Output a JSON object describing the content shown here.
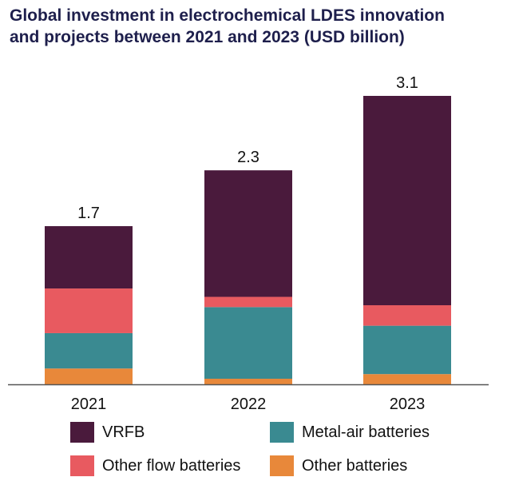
{
  "chart_data": {
    "type": "bar",
    "stacked": true,
    "title_lines": [
      "Global investment in electrochemical LDES innovation",
      "and projects between 2021 and 2023 (USD billion)"
    ],
    "categories": [
      "2021",
      "2022",
      "2023"
    ],
    "totals": [
      "1.7",
      "2.3",
      "3.1"
    ],
    "series": [
      {
        "name": "Other batteries",
        "color": "#e8883a",
        "values": [
          0.17,
          0.06,
          0.11
        ]
      },
      {
        "name": "Metal-air batteries",
        "color": "#3a8a91",
        "values": [
          0.38,
          0.77,
          0.52
        ]
      },
      {
        "name": "Other flow batteries",
        "color": "#e85a60",
        "values": [
          0.48,
          0.11,
          0.22
        ]
      },
      {
        "name": "VRFB",
        "color": "#4a1a3c",
        "values": [
          0.67,
          1.36,
          2.25
        ]
      }
    ],
    "legend_order": [
      3,
      1,
      2,
      0
    ],
    "ylim": [
      0,
      3.1
    ],
    "grid": false,
    "legend_position": "bottom"
  }
}
